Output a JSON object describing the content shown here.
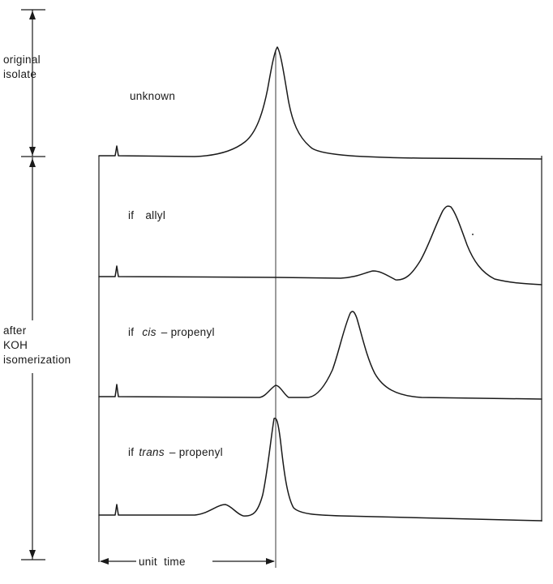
{
  "left_brackets": {
    "original_line1": "original",
    "original_line2": "isolate",
    "after_line1": "after",
    "after_line2": "KOH",
    "after_line3": "isomerization"
  },
  "traces": {
    "unknown": "unknown",
    "allyl_prefix": "if",
    "allyl_name": "allyl",
    "cis_prefix": "if",
    "cis_italic": "cis",
    "cis_suffix": "– propenyl",
    "trans_prefix": "if",
    "trans_italic": "trans",
    "trans_suffix": "– propenyl"
  },
  "time_axis": {
    "label": "unit  time"
  }
}
